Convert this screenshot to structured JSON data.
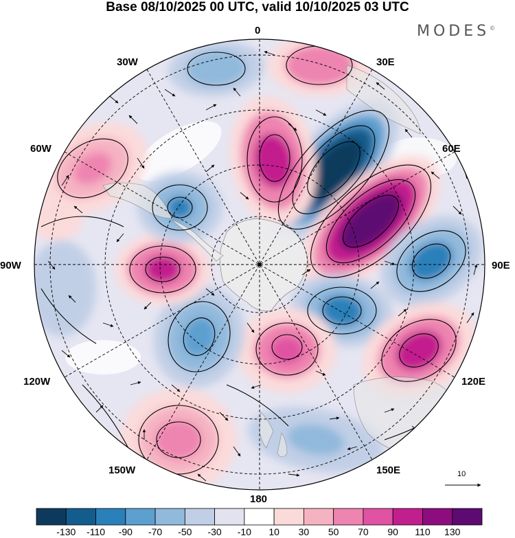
{
  "title": "Base 08/10/2025 00 UTC, valid 10/10/2025 03 UTC",
  "brand": {
    "text": "MODES",
    "mark": "©"
  },
  "meridian_labels": {
    "m0": "0",
    "m30e": "30E",
    "m60e": "60E",
    "m90e": "90E",
    "m120e": "120E",
    "m150e": "150E",
    "m180": "180",
    "m150w": "150W",
    "m120w": "120W",
    "m90w": "90W",
    "m60w": "60W",
    "m30w": "30W"
  },
  "wind_reference": {
    "label": "10"
  },
  "colorbar": {
    "colors": [
      "#0d3a5c",
      "#135d8e",
      "#2a80b9",
      "#5d9fcf",
      "#91b9dc",
      "#c1cfe6",
      "#e3e3f0",
      "#ffffff",
      "#fbdada",
      "#f5b3c2",
      "#ee84b0",
      "#e052a2",
      "#c21f8e",
      "#8e0d7e",
      "#5d0a72"
    ],
    "labels": [
      "-130",
      "-110",
      "-90",
      "-70",
      "-50",
      "-30",
      "-10",
      "10",
      "30",
      "50",
      "70",
      "90",
      "110",
      "130"
    ]
  },
  "anomalies": [
    {
      "name": "blue-anomaly-30e",
      "value": -130
    },
    {
      "name": "purple-anomaly-60e",
      "value": 130
    },
    {
      "name": "magenta-anomaly-near-0",
      "value": 90
    },
    {
      "name": "pink-anomaly-20e",
      "value": 50
    },
    {
      "name": "blue-anomaly-90e",
      "value": -90
    },
    {
      "name": "blue-anomaly-110e",
      "value": -90
    },
    {
      "name": "magenta-anomaly-120e",
      "value": 90
    },
    {
      "name": "magenta-anomaly-170e",
      "value": 90
    },
    {
      "name": "blue-anomaly-150e",
      "value": -50
    },
    {
      "name": "pink-anomaly-150w",
      "value": 70
    },
    {
      "name": "blue-anomaly-120w",
      "value": -70
    },
    {
      "name": "magenta-anomaly-90w",
      "value": 110
    },
    {
      "name": "blue-anomaly-60w",
      "value": -90
    },
    {
      "name": "pink-anomaly-60w",
      "value": 70
    },
    {
      "name": "blue-anomaly-30w",
      "value": -50
    },
    {
      "name": "blue-anomaly-90w-outer",
      "value": -30
    }
  ]
}
